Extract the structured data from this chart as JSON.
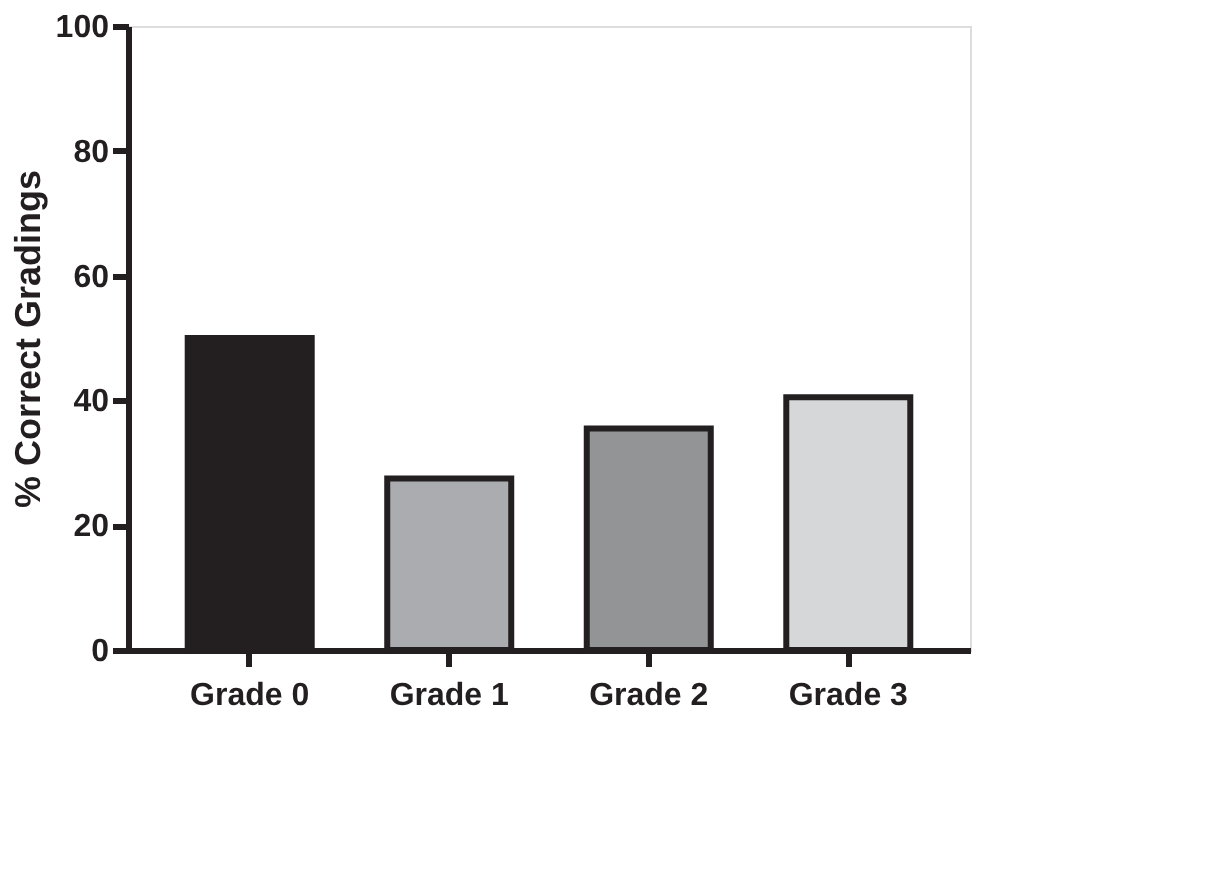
{
  "chart_data": {
    "type": "bar",
    "ylabel": "% Correct Gradings",
    "categories": [
      "Grade 0",
      "Grade 1",
      "Grade 2",
      "Grade 3"
    ],
    "values": [
      50,
      27.5,
      35.5,
      40.5
    ],
    "colors": [
      "#231f20",
      "#abacaf",
      "#939496",
      "#d6d7d9"
    ],
    "ylim": [
      0,
      100
    ],
    "yticks": [
      0,
      20,
      40,
      60,
      80,
      100
    ],
    "grid": false
  }
}
